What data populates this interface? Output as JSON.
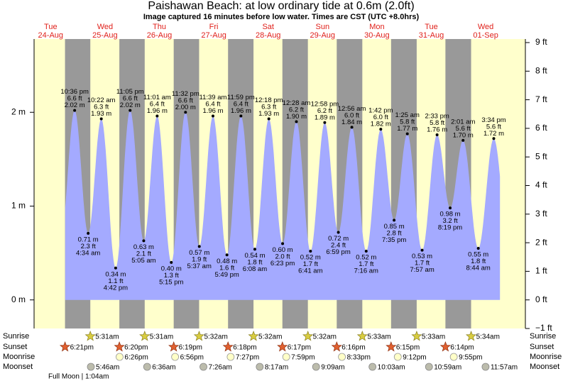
{
  "chart_data": {
    "type": "tide",
    "title": "Paishawan Beach: at low  ordinary tide at 0.6m (2.0ft)",
    "subtitle": "Image captured 16 minutes before low water. Times are CST (UTC +8.0hrs)",
    "weekdays": [
      "Tue",
      "Wed",
      "Thu",
      "Fri",
      "Sat",
      "Sun",
      "Mon",
      "Tue",
      "Wed"
    ],
    "dates": [
      "24-Aug",
      "25-Aug",
      "26-Aug",
      "27-Aug",
      "28-Aug",
      "29-Aug",
      "30-Aug",
      "31-Aug",
      "01-Sep"
    ],
    "ylim": [
      -0.3048,
      2.7432
    ],
    "yticks": [
      {
        "value": 0,
        "label": "0 m"
      },
      {
        "value": 1,
        "label": "1 m"
      },
      {
        "value": 2,
        "label": "2 m"
      }
    ],
    "y2lim": [
      -1,
      9
    ],
    "y2ticks": [
      {
        "value": -1,
        "label": "−1 ft"
      },
      {
        "value": 0,
        "label": "0 ft"
      },
      {
        "value": 1,
        "label": "1 ft"
      },
      {
        "value": 2,
        "label": "2 ft"
      },
      {
        "value": 3,
        "label": "3 ft"
      },
      {
        "value": 4,
        "label": "4 ft"
      },
      {
        "value": 5,
        "label": "5 ft"
      },
      {
        "value": 6,
        "label": "6 ft"
      },
      {
        "value": 7,
        "label": "7 ft"
      },
      {
        "value": 8,
        "label": "8 ft"
      },
      {
        "value": 9,
        "label": "9 ft"
      }
    ],
    "color": "#a4aaff",
    "tides": {
      "times": [
        "10:36 pm",
        "4:34 am",
        "10:22 am",
        "4:42 pm",
        "11:05 pm",
        "5:05 am",
        "11:01 am",
        "5:15 pm",
        "11:32 pm",
        "5:37 am",
        "11:39 am",
        "5:49 pm",
        "11:59 pm",
        "6:08 am",
        "12:18 pm",
        "6:23 pm",
        "12:28 am",
        "6:41 am",
        "12:58 pm",
        "6:59 pm",
        "12:56 am",
        "7:16 am",
        "1:42 pm",
        "7:35 pm",
        "1:25 am",
        "7:57 am",
        "2:33 pm",
        "8:19 pm",
        "2:01 am",
        "8:44 am",
        "3:34 pm"
      ],
      "values": [
        2.02,
        0.71,
        1.93,
        0.34,
        2.02,
        0.63,
        1.96,
        0.4,
        2.0,
        0.57,
        1.96,
        0.48,
        1.96,
        0.54,
        1.93,
        0.6,
        1.9,
        0.52,
        1.89,
        0.72,
        1.84,
        0.52,
        1.82,
        0.85,
        1.77,
        0.53,
        1.76,
        0.98,
        1.7,
        0.55,
        1.72
      ],
      "value_labels": [
        "2.02 m",
        "0.71 m",
        "1.93 m",
        "0.34 m",
        "2.02 m",
        "0.63 m",
        "1.96 m",
        "0.40 m",
        "2.00 m",
        "0.57 m",
        "1.96 m",
        "0.48 m",
        "1.96 m",
        "0.54 m",
        "1.93 m",
        "0.60 m",
        "1.90 m",
        "0.52 m",
        "1.89 m",
        "0.72 m",
        "1.84 m",
        "0.52 m",
        "1.82 m",
        "0.85 m",
        "1.77 m",
        "0.53 m",
        "1.76 m",
        "0.98 m",
        "1.70 m",
        "0.55 m",
        "1.72 m"
      ],
      "ft_labels": [
        "6.6 ft",
        "2.3 ft",
        "6.3 ft",
        "1.1 ft",
        "6.6 ft",
        "2.1 ft",
        "6.4 ft",
        "1.3 ft",
        "6.6 ft",
        "1.9 ft",
        "6.4 ft",
        "1.6 ft",
        "6.4 ft",
        "1.8 ft",
        "6.3 ft",
        "2.0 ft",
        "6.2 ft",
        "1.7 ft",
        "6.2 ft",
        "2.4 ft",
        "6.0 ft",
        "1.7 ft",
        "6.0 ft",
        "2.8 ft",
        "5.8 ft",
        "1.7 ft",
        "5.8 ft",
        "3.2 ft",
        "5.6 ft",
        "1.8 ft",
        "5.6 ft"
      ]
    },
    "rows": [
      {
        "label": "Sunrise",
        "times": [
          null,
          "5:31am",
          "5:31am",
          "5:32am",
          "5:32am",
          "5:32am",
          "5:33am",
          "5:33am",
          "5:34am"
        ]
      },
      {
        "label": "Sunset",
        "times": [
          "6:21pm",
          "6:20pm",
          "6:19pm",
          "6:18pm",
          "6:17pm",
          "6:16pm",
          "6:15pm",
          "6:14pm",
          null
        ]
      },
      {
        "label": "Moonrise",
        "times": [
          null,
          "6:26pm",
          "6:56pm",
          "7:27pm",
          "7:59pm",
          "8:33pm",
          "9:12pm",
          "9:55pm",
          null
        ]
      },
      {
        "label": "Moonset",
        "times": [
          null,
          "5:46am",
          "6:36am",
          "7:26am",
          "8:17am",
          "9:09am",
          "10:03am",
          "10:59am",
          "11:57am"
        ]
      }
    ],
    "moon_phase": "Full Moon | 1:04am"
  }
}
